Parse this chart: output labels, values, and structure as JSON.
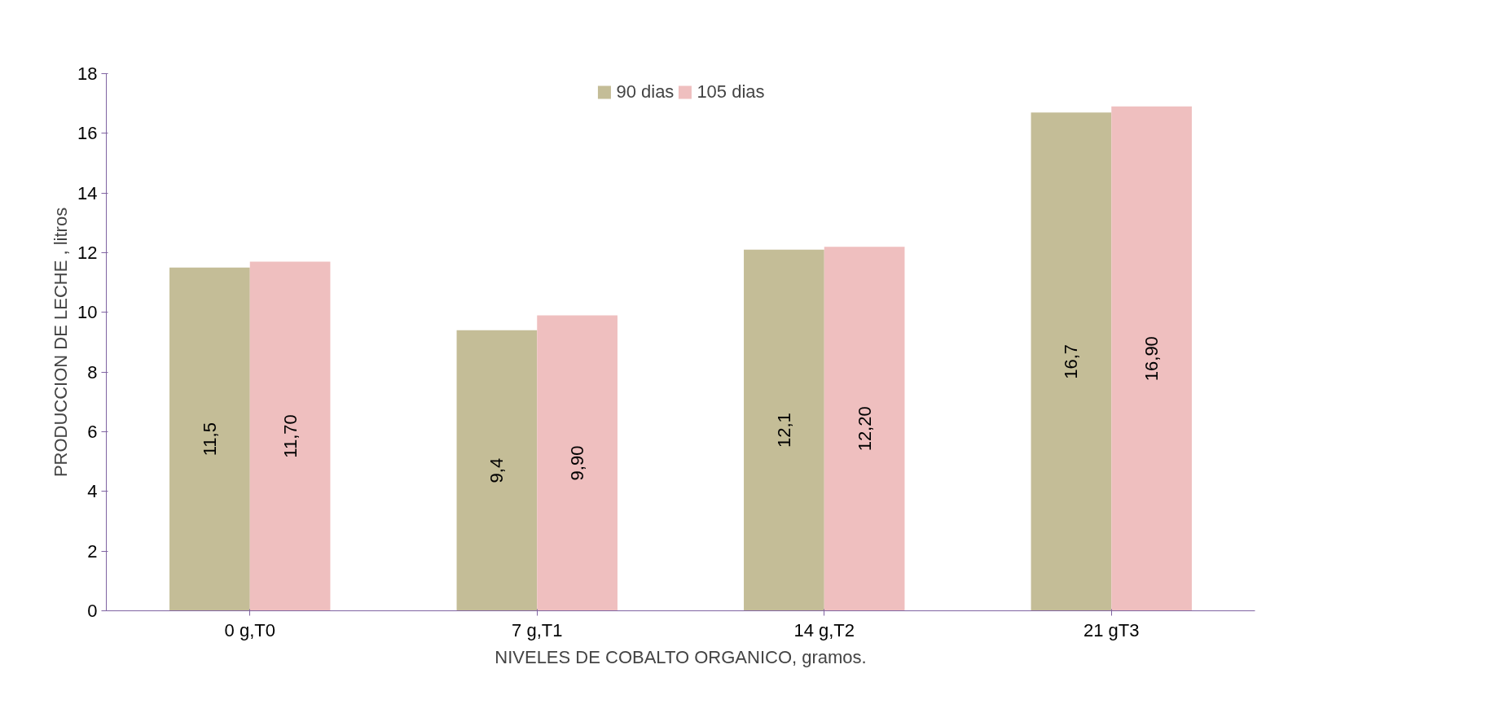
{
  "chart_data": {
    "type": "bar",
    "xlabel": "NIVELES DE COBALTO ORGANICO, gramos.",
    "ylabel": "PRODUCCION DE LECHE , litros",
    "categories": [
      "0 g,T0",
      "7 g,T1",
      "14 g,T2",
      "21 gT3"
    ],
    "series": [
      {
        "name": "90 dias",
        "color": "#c4bd97",
        "values": [
          11.5,
          9.4,
          12.1,
          16.7
        ],
        "value_labels": [
          "11,5",
          "9,4",
          "12,1",
          "16,7"
        ]
      },
      {
        "name": "105 dias",
        "color": "#efbfbf",
        "values": [
          11.7,
          9.9,
          12.2,
          16.9
        ],
        "value_labels": [
          "11,70",
          "9,90",
          "12,20",
          "16,90"
        ]
      }
    ],
    "ylim": [
      0,
      18
    ],
    "yticks": [
      0,
      2,
      4,
      6,
      8,
      10,
      12,
      14,
      16,
      18
    ],
    "grid": false,
    "legend": "top"
  }
}
